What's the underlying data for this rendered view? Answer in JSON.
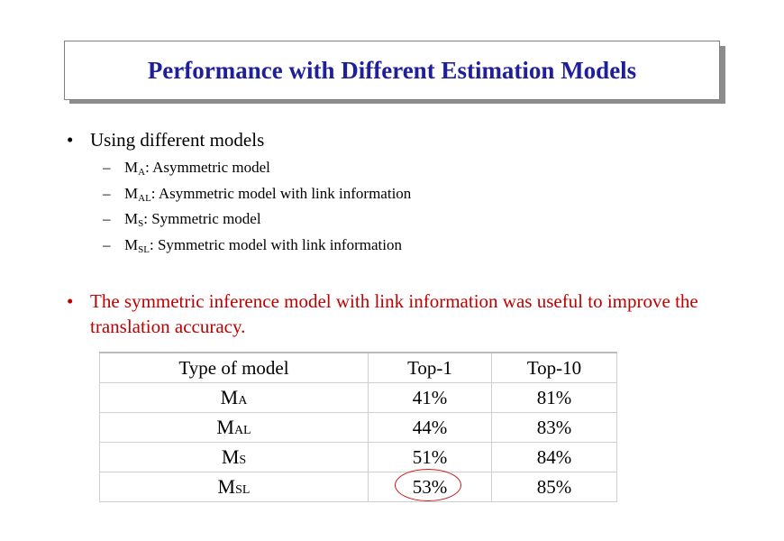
{
  "slide": {
    "title": "Performance with Different Estimation Models",
    "bullets": [
      {
        "text": "Using different models",
        "subitems": [
          {
            "model": "M",
            "sub": "A",
            "desc": ": Asymmetric model"
          },
          {
            "model": "M",
            "sub": "AL",
            "desc": ": Asymmetric model with link information"
          },
          {
            "model": "M",
            "sub": "S",
            "desc": ": Symmetric model"
          },
          {
            "model": "M",
            "sub": "SL",
            "desc": ": Symmetric model with link information"
          }
        ]
      },
      {
        "text": "The symmetric inference model with link information was useful to improve the translation accuracy."
      }
    ],
    "table": {
      "headers": [
        "Type of model",
        "Top-1",
        "Top-10"
      ],
      "rows": [
        {
          "model": "M",
          "sub": "A",
          "top1": "41%",
          "top10": "81%"
        },
        {
          "model": "M",
          "sub": "AL",
          "top1": "44%",
          "top10": "83%"
        },
        {
          "model": "M",
          "sub": "S",
          "top1": "51%",
          "top10": "84%"
        },
        {
          "model": "M",
          "sub": "SL",
          "top1": "53%",
          "top10": "85%"
        }
      ]
    },
    "colors": {
      "title": "#1f1f9a",
      "bullet2": "#c00000",
      "highlight_ring": "#d01818"
    },
    "bullet_glyph": "•",
    "dash_glyph": "–"
  }
}
